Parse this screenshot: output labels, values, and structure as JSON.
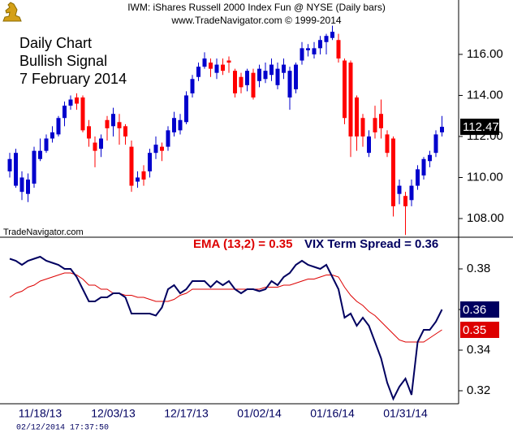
{
  "chart_data": [
    {
      "type": "candlestick",
      "title": "IWM:  iShares Russell 2000 Index Fun @ NYSE  (Daily bars)",
      "subtitle": "www.TradeNavigator.com © 1999-2014",
      "annotations": [
        "Daily Chart",
        "Bullish Signal",
        "7 February 2014"
      ],
      "watermark": "TradeNavigator.com",
      "up_color": "#0000cc",
      "down_color": "#ff0000",
      "ylim": [
        107.09,
        118.65
      ],
      "yticks": [
        {
          "value": 108,
          "label": "108.00"
        },
        {
          "value": 110,
          "label": "110.00"
        },
        {
          "value": 112,
          "label": "112.00"
        },
        {
          "value": 114,
          "label": "114.00"
        },
        {
          "value": 116,
          "label": "116.00"
        }
      ],
      "open": [
        110.3,
        109.6,
        109.3,
        109.2,
        109.7,
        110.9,
        111.3,
        111.9,
        112.1,
        112.9,
        113.5,
        113.9,
        113.9,
        112.5,
        111.7,
        111.4,
        112.8,
        112.5,
        112.7,
        112.5,
        111.5,
        109.8,
        110.3,
        110.3,
        111.2,
        111.5,
        111.5,
        112.2,
        112.3,
        112.7,
        114.1,
        114.9,
        115.4,
        115.6,
        115.1,
        115.5,
        115.7,
        115.2,
        114.9,
        114.5,
        115.1,
        114.7,
        114.8,
        115.0,
        114.5,
        115.1,
        113.9,
        114.3,
        115.7,
        116.2,
        116.0,
        116.3,
        116.6,
        116.8,
        116.7,
        115.7,
        115.6,
        113.9,
        112.9,
        111.2,
        112.9,
        113.1,
        112.1,
        111.9,
        109.2,
        109.1,
        108.9,
        109.6,
        110.1,
        110.8,
        111.2,
        112.2
      ],
      "high": [
        111.2,
        111.4,
        110.3,
        110.2,
        111.5,
        111.9,
        112.1,
        112.5,
        113.0,
        113.7,
        114.0,
        114.1,
        114.0,
        112.8,
        112.0,
        112.1,
        113.0,
        113.4,
        113.1,
        112.6,
        111.8,
        110.3,
        110.6,
        111.4,
        112.0,
        111.7,
        112.5,
        113.2,
        113.1,
        114.2,
        115.0,
        115.6,
        116.1,
        115.8,
        115.8,
        115.8,
        115.9,
        115.3,
        115.1,
        115.3,
        115.3,
        115.5,
        115.6,
        115.8,
        115.6,
        115.8,
        115.4,
        115.6,
        116.6,
        116.5,
        116.6,
        116.9,
        117.0,
        117.4,
        117.0,
        115.8,
        115.7,
        114.0,
        113.1,
        112.3,
        113.5,
        113.8,
        112.3,
        112.0,
        109.9,
        109.3,
        109.9,
        110.6,
        111.0,
        111.3,
        112.3,
        113.0
      ],
      "low": [
        110.0,
        109.5,
        108.9,
        108.8,
        109.5,
        110.8,
        111.2,
        111.7,
        112.0,
        112.5,
        113.3,
        113.3,
        112.2,
        111.5,
        110.5,
        111.0,
        111.8,
        112.0,
        111.6,
        111.6,
        109.3,
        109.5,
        109.6,
        110.0,
        110.9,
        110.8,
        111.3,
        112.0,
        112.1,
        112.6,
        113.9,
        114.7,
        115.3,
        114.9,
        114.8,
        115.0,
        115.1,
        113.9,
        114.1,
        114.2,
        113.8,
        114.4,
        114.6,
        114.7,
        114.3,
        114.8,
        113.3,
        114.1,
        115.5,
        115.9,
        115.8,
        116.0,
        116.0,
        116.7,
        115.6,
        112.6,
        111.0,
        111.3,
        111.5,
        111.0,
        111.9,
        111.9,
        111.0,
        108.1,
        108.7,
        107.2,
        108.6,
        109.4,
        109.9,
        110.5,
        111.0,
        112.0
      ],
      "close": [
        110.9,
        111.2,
        110.0,
        109.9,
        111.3,
        111.3,
        111.9,
        112.2,
        112.9,
        113.5,
        113.8,
        113.6,
        112.3,
        111.9,
        111.3,
        111.9,
        112.4,
        113.1,
        112.4,
        112.0,
        109.6,
        110.0,
        109.9,
        111.2,
        111.6,
        111.3,
        112.3,
        112.9,
        112.8,
        114.0,
        114.8,
        115.4,
        115.8,
        115.3,
        115.5,
        115.2,
        115.6,
        114.1,
        114.4,
        115.2,
        113.9,
        115.3,
        115.2,
        115.5,
        115.3,
        115.5,
        115.2,
        115.5,
        116.3,
        116.3,
        116.3,
        116.7,
        116.9,
        117.1,
        115.8,
        112.9,
        112.0,
        112.0,
        112.0,
        112.0,
        112.2,
        112.4,
        111.2,
        108.6,
        109.6,
        108.6,
        109.6,
        110.4,
        110.9,
        111.1,
        112.1,
        112.47
      ]
    },
    {
      "type": "line",
      "timestamp": "02/12/2014 17:37:50",
      "categories": [
        null,
        null,
        null,
        null,
        null,
        "11/18/13",
        null,
        null,
        null,
        null,
        null,
        null,
        null,
        null,
        null,
        null,
        null,
        "12/03/13",
        null,
        null,
        null,
        null,
        null,
        null,
        null,
        null,
        null,
        null,
        null,
        "12/17/13",
        null,
        null,
        null,
        null,
        null,
        null,
        null,
        null,
        null,
        null,
        null,
        "01/02/14",
        null,
        null,
        null,
        null,
        null,
        null,
        null,
        null,
        null,
        null,
        null,
        "01/16/14",
        null,
        null,
        null,
        null,
        null,
        null,
        null,
        null,
        null,
        null,
        null,
        "01/31/14",
        null,
        null,
        null,
        null,
        null,
        null
      ],
      "ylim": [
        0.3136,
        0.3956
      ],
      "yticks": [
        0.32,
        0.34,
        0.36,
        0.38
      ],
      "series": [
        {
          "name": "EMA (13,2) = 0.35",
          "color": "#dd0000",
          "values": [
            0.366,
            0.368,
            0.369,
            0.371,
            0.372,
            0.374,
            0.375,
            0.376,
            0.377,
            0.378,
            0.378,
            0.377,
            0.375,
            0.372,
            0.372,
            0.37,
            0.37,
            0.368,
            0.368,
            0.367,
            0.367,
            0.366,
            0.366,
            0.365,
            0.364,
            0.364,
            0.364,
            0.365,
            0.367,
            0.368,
            0.37,
            0.37,
            0.37,
            0.37,
            0.37,
            0.37,
            0.37,
            0.37,
            0.37,
            0.37,
            0.37,
            0.37,
            0.371,
            0.371,
            0.371,
            0.372,
            0.372,
            0.373,
            0.374,
            0.375,
            0.375,
            0.376,
            0.377,
            0.377,
            0.376,
            0.371,
            0.367,
            0.364,
            0.362,
            0.359,
            0.357,
            0.354,
            0.351,
            0.348,
            0.345,
            0.344,
            0.344,
            0.344,
            0.344,
            0.346,
            0.348,
            0.35
          ]
        },
        {
          "name": "VIX Term Spread = 0.36",
          "color": "#000060",
          "values": [
            0.385,
            0.384,
            0.382,
            0.384,
            0.385,
            0.386,
            0.384,
            0.383,
            0.382,
            0.38,
            0.38,
            0.376,
            0.37,
            0.364,
            0.364,
            0.366,
            0.366,
            0.368,
            0.368,
            0.366,
            0.358,
            0.358,
            0.358,
            0.358,
            0.357,
            0.361,
            0.37,
            0.372,
            0.368,
            0.37,
            0.374,
            0.374,
            0.374,
            0.371,
            0.374,
            0.372,
            0.374,
            0.37,
            0.368,
            0.37,
            0.37,
            0.369,
            0.37,
            0.374,
            0.372,
            0.376,
            0.378,
            0.382,
            0.384,
            0.382,
            0.381,
            0.38,
            0.382,
            0.376,
            0.37,
            0.356,
            0.358,
            0.352,
            0.356,
            0.352,
            0.344,
            0.336,
            0.324,
            0.316,
            0.322,
            0.326,
            0.318,
            0.344,
            0.35,
            0.35,
            0.354,
            0.36
          ]
        }
      ]
    }
  ]
}
